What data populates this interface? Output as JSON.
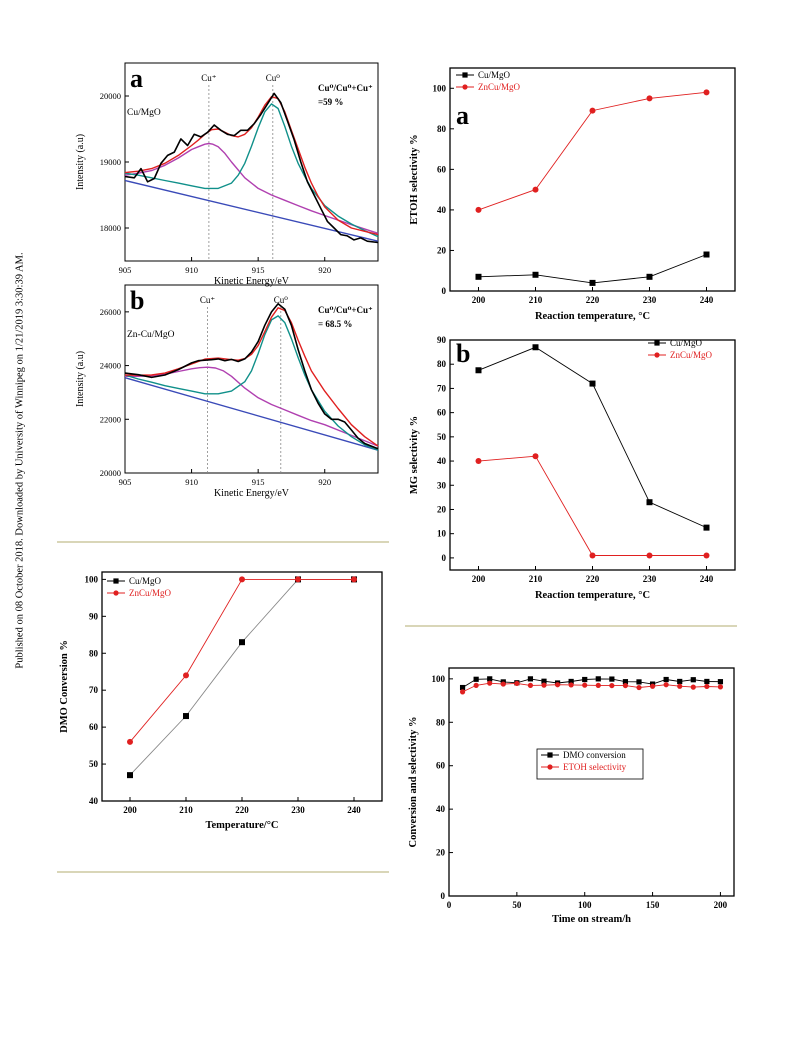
{
  "page": {
    "side_note": "Published on 08 October 2018. Downloaded by University of Winnipeg on 1/21/2019 3:30:39 AM."
  },
  "chart_data": [
    {
      "id": "xps_a",
      "type": "line",
      "panel_letter": "a",
      "sample": "Cu/MgO",
      "xlabel": "Kinetic Energy/eV",
      "ylabel": "Intensity (a.u)",
      "xlim": [
        905,
        924
      ],
      "ylim": [
        17500,
        20500
      ],
      "xticks": [
        905,
        910,
        915,
        920
      ],
      "yticks": [
        18000,
        19000,
        20000
      ],
      "peak_labels": [
        {
          "text": "Cu⁺",
          "x": 911.3
        },
        {
          "text": "Cu⁰",
          "x": 916.1
        }
      ],
      "ratio_text": [
        "Cu⁰/Cu⁰+Cu⁺",
        "=59 %"
      ],
      "series": [
        {
          "color": "#000000",
          "x": [
            905,
            905.7,
            906.2,
            906.7,
            907.2,
            907.7,
            908.2,
            908.7,
            909.2,
            909.7,
            910.2,
            910.7,
            911.2,
            911.7,
            912.2,
            912.7,
            913.2,
            913.7,
            914.2,
            914.7,
            915.2,
            915.7,
            916.2,
            916.7,
            917.2,
            917.7,
            918.2,
            918.7,
            919.2,
            919.7,
            920.2,
            920.7,
            921.2,
            921.7,
            922.2,
            922.7,
            923.2,
            924
          ],
          "y": [
            18780,
            18760,
            18900,
            18700,
            18750,
            18980,
            19100,
            19150,
            19350,
            19250,
            19420,
            19380,
            19450,
            19560,
            19480,
            19420,
            19400,
            19480,
            19480,
            19580,
            19720,
            19880,
            20040,
            19900,
            19620,
            19340,
            19000,
            18700,
            18500,
            18300,
            18100,
            18000,
            17900,
            17880,
            17820,
            17850,
            17800,
            17780
          ]
        },
        {
          "color": "#e02020",
          "x": [
            905,
            906,
            907,
            908,
            909,
            910,
            910.5,
            911,
            911.5,
            912,
            912.5,
            913,
            913.5,
            914,
            914.5,
            915,
            915.5,
            916,
            916.5,
            917,
            917.5,
            918,
            918.5,
            919,
            919.5,
            920,
            921,
            922,
            923,
            924
          ],
          "y": [
            18840,
            18860,
            18900,
            18980,
            19100,
            19250,
            19330,
            19420,
            19490,
            19500,
            19450,
            19400,
            19380,
            19420,
            19520,
            19680,
            19860,
            19990,
            19960,
            19760,
            19480,
            19200,
            18920,
            18680,
            18480,
            18320,
            18120,
            18000,
            17950,
            17900
          ]
        },
        {
          "color": "#b040b0",
          "x": [
            905,
            906,
            907,
            908,
            909,
            910,
            910.5,
            911,
            911.3,
            911.6,
            912,
            912.5,
            913,
            914,
            915,
            916,
            917,
            918,
            919,
            920,
            922,
            924
          ],
          "y": [
            18800,
            18830,
            18870,
            18950,
            19060,
            19190,
            19230,
            19270,
            19280,
            19270,
            19230,
            19130,
            19000,
            18760,
            18600,
            18500,
            18420,
            18340,
            18260,
            18190,
            18050,
            17920
          ]
        },
        {
          "color": "#10908a",
          "x": [
            905,
            906,
            907,
            908,
            909,
            910,
            911,
            912,
            913,
            913.5,
            914,
            914.5,
            915,
            915.5,
            916,
            916.5,
            917,
            917.5,
            918,
            918.5,
            919,
            920,
            921,
            922,
            923,
            924
          ],
          "y": [
            18830,
            18800,
            18760,
            18720,
            18680,
            18640,
            18600,
            18600,
            18680,
            18800,
            18980,
            19240,
            19520,
            19760,
            19880,
            19810,
            19540,
            19240,
            18980,
            18780,
            18600,
            18340,
            18180,
            18060,
            17960,
            17870
          ]
        },
        {
          "color": "#3a4ab8",
          "x": [
            905,
            924
          ],
          "y": [
            18720,
            17800
          ]
        }
      ]
    },
    {
      "id": "xps_b",
      "type": "line",
      "panel_letter": "b",
      "sample": "Zn-Cu/MgO",
      "xlabel": "Kinetic Energy/eV",
      "ylabel": "Intensity (a.u)",
      "xlim": [
        905,
        924
      ],
      "ylim": [
        20000,
        27000
      ],
      "xticks": [
        905,
        910,
        915,
        920
      ],
      "yticks": [
        20000,
        22000,
        24000,
        26000
      ],
      "peak_labels": [
        {
          "text": "Cu⁺",
          "x": 911.2
        },
        {
          "text": "Cu⁰",
          "x": 916.7
        }
      ],
      "ratio_text": [
        "Cu⁰/Cu⁰+Cu⁺",
        "= 68.5 %"
      ],
      "series": [
        {
          "color": "#000000",
          "x": [
            905,
            906,
            907,
            908,
            909,
            910,
            910.5,
            911,
            911.5,
            912,
            912.5,
            913,
            913.5,
            914,
            914.5,
            915,
            915.5,
            916,
            916.5,
            917,
            917.5,
            918,
            918.5,
            919,
            919.5,
            920,
            920.5,
            921,
            921.5,
            922,
            922.5,
            923,
            924
          ],
          "y": [
            23720,
            23660,
            23560,
            23650,
            23850,
            24100,
            24180,
            24200,
            24220,
            24250,
            24180,
            24230,
            24150,
            24250,
            24500,
            24900,
            25500,
            26000,
            26300,
            26100,
            25500,
            24600,
            23800,
            23100,
            22600,
            22200,
            22000,
            22000,
            21900,
            21600,
            21300,
            21100,
            20900
          ]
        },
        {
          "color": "#e02020",
          "x": [
            905,
            906,
            907,
            908,
            909,
            910,
            911,
            912,
            913,
            913.5,
            914,
            914.5,
            915,
            915.5,
            916,
            916.5,
            917,
            917.5,
            918,
            918.5,
            919,
            920,
            921,
            922,
            923,
            924
          ],
          "y": [
            23650,
            23640,
            23650,
            23720,
            23880,
            24060,
            24240,
            24280,
            24220,
            24200,
            24260,
            24420,
            24750,
            25260,
            25800,
            26150,
            26050,
            25600,
            24950,
            24350,
            23800,
            23050,
            22400,
            21800,
            21350,
            21000
          ]
        },
        {
          "color": "#b040b0",
          "x": [
            905,
            906,
            907,
            908,
            909,
            910,
            910.6,
            911.2,
            911.8,
            912.4,
            913,
            914,
            915,
            916,
            917,
            918,
            919,
            920,
            922,
            924
          ],
          "y": [
            23600,
            23600,
            23620,
            23680,
            23780,
            23880,
            23920,
            23940,
            23910,
            23800,
            23600,
            23160,
            22800,
            22550,
            22350,
            22150,
            21950,
            21800,
            21400,
            21000
          ]
        },
        {
          "color": "#10908a",
          "x": [
            905,
            906,
            907,
            908,
            909,
            910,
            911,
            912,
            913,
            914,
            914.5,
            915,
            915.5,
            916,
            916.5,
            917,
            917.5,
            918,
            918.5,
            919,
            920,
            921,
            922,
            923,
            924
          ],
          "y": [
            23650,
            23500,
            23380,
            23250,
            23150,
            23050,
            22950,
            22950,
            23050,
            23400,
            23800,
            24450,
            25150,
            25700,
            25850,
            25600,
            25000,
            24300,
            23650,
            23100,
            22300,
            21750,
            21350,
            21050,
            20850
          ]
        },
        {
          "color": "#3a4ab8",
          "x": [
            905,
            924
          ],
          "y": [
            23550,
            20850
          ]
        }
      ]
    },
    {
      "id": "dmo_conversion",
      "type": "line",
      "xlabel": "Temperature/°C",
      "ylabel": "DMO Conversion %",
      "xlim": [
        195,
        245
      ],
      "ylim": [
        40,
        102
      ],
      "xticks": [
        200,
        210,
        220,
        230,
        240
      ],
      "yticks": [
        40,
        50,
        60,
        70,
        80,
        90,
        100
      ],
      "legend_position": "top-left",
      "x": [
        200,
        210,
        220,
        230,
        240
      ],
      "series": [
        {
          "name": "Cu/MgO",
          "color": "#000000",
          "marker": "square",
          "values": [
            47,
            63,
            83,
            100,
            100
          ]
        },
        {
          "name": "ZnCu/MgO",
          "color": "#e02020",
          "marker": "circle",
          "values": [
            56,
            74,
            100,
            100,
            100
          ]
        }
      ]
    },
    {
      "id": "etoh_selectivity",
      "type": "line",
      "panel_letter": "a",
      "xlabel": "Reaction temperature, °C",
      "ylabel": "ETOH selectivity %",
      "xlim": [
        195,
        245
      ],
      "ylim": [
        0,
        110
      ],
      "xticks": [
        200,
        210,
        220,
        230,
        240
      ],
      "yticks": [
        0,
        20,
        40,
        60,
        80,
        100
      ],
      "legend_position": "top-left",
      "x": [
        200,
        210,
        220,
        230,
        240
      ],
      "series": [
        {
          "name": "Cu/MgO",
          "color": "#000000",
          "marker": "square",
          "values": [
            7,
            8,
            4,
            7,
            18
          ]
        },
        {
          "name": "ZnCu/MgO",
          "color": "#e02020",
          "marker": "circle",
          "values": [
            40,
            50,
            89,
            95,
            98
          ]
        }
      ]
    },
    {
      "id": "mg_selectivity",
      "type": "line",
      "panel_letter": "b",
      "xlabel": "Reaction temperature, °C",
      "ylabel": "MG selectivity %",
      "xlim": [
        195,
        245
      ],
      "ylim": [
        -5,
        90
      ],
      "xticks": [
        200,
        210,
        220,
        230,
        240
      ],
      "yticks": [
        0,
        10,
        20,
        30,
        40,
        50,
        60,
        70,
        80,
        90
      ],
      "legend_position": "top-right",
      "x": [
        200,
        210,
        220,
        230,
        240
      ],
      "series": [
        {
          "name": "Cu/MgO",
          "color": "#000000",
          "marker": "square",
          "values": [
            77.5,
            87,
            72,
            23,
            12.5
          ]
        },
        {
          "name": "ZnCu/MgO",
          "color": "#e02020",
          "marker": "circle",
          "values": [
            40,
            42,
            1,
            1,
            1
          ]
        }
      ]
    },
    {
      "id": "stability",
      "type": "line",
      "xlabel": "Time on stream/h",
      "ylabel": "Conversion and selectivity %",
      "xlim": [
        0,
        210
      ],
      "ylim": [
        0,
        105
      ],
      "xticks": [
        0,
        50,
        100,
        150,
        200
      ],
      "yticks": [
        0,
        20,
        40,
        60,
        80,
        100
      ],
      "legend_position": "center",
      "x": [
        10,
        20,
        30,
        40,
        50,
        60,
        70,
        80,
        90,
        100,
        110,
        120,
        130,
        140,
        150,
        160,
        170,
        180,
        190,
        200
      ],
      "series": [
        {
          "name": "DMO conversion",
          "color": "#000000",
          "marker": "square",
          "values": [
            96,
            99.8,
            100,
            98.6,
            98.2,
            100,
            98.9,
            98.1,
            98.8,
            99.7,
            100,
            99.9,
            98.7,
            98.6,
            97.6,
            99.7,
            98.8,
            99.6,
            98.8,
            98.7
          ]
        },
        {
          "name": "ETOH selectivity",
          "color": "#e02020",
          "marker": "circle",
          "values": [
            94,
            97,
            98,
            97.6,
            97.9,
            97,
            97.1,
            97.3,
            97.2,
            97.1,
            97,
            96.9,
            96.9,
            96,
            96.6,
            97.3,
            96.6,
            96.2,
            96.5,
            96.3
          ]
        }
      ]
    }
  ]
}
